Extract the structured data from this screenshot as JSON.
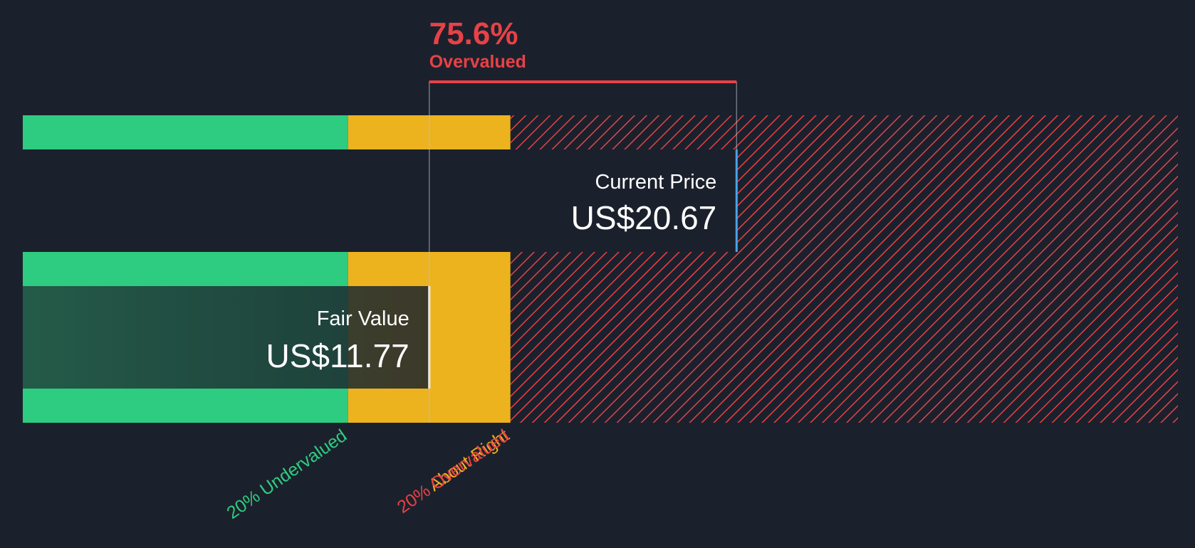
{
  "chart_data": {
    "type": "bar",
    "title": "",
    "currency": "US$",
    "fair_value": {
      "label": "Fair Value",
      "value": 11.77,
      "display": "US$11.77"
    },
    "current_price": {
      "label": "Current Price",
      "value": 20.67,
      "display": "US$20.67"
    },
    "valuation": {
      "percent_display": "75.6%",
      "status": "Overvalued"
    },
    "zones": [
      {
        "name": "undervalued",
        "label": "20% Undervalued",
        "from": 0,
        "to": 9.42,
        "color": "#2ecc80"
      },
      {
        "name": "about-right",
        "label": "About Right",
        "from": 9.42,
        "to": 14.12,
        "color": "#edb31e"
      },
      {
        "name": "overvalued",
        "label": "20% Overvalued",
        "from": 14.12,
        "to": 33.45,
        "color": "#e84147"
      }
    ],
    "x_range": [
      0,
      33.45
    ]
  },
  "colors": {
    "background": "#1b212c",
    "fair_value_box": "#1f3a32",
    "price_marker": "#4aa3e8",
    "bracket": "#e84147",
    "text": "#ffffff"
  }
}
